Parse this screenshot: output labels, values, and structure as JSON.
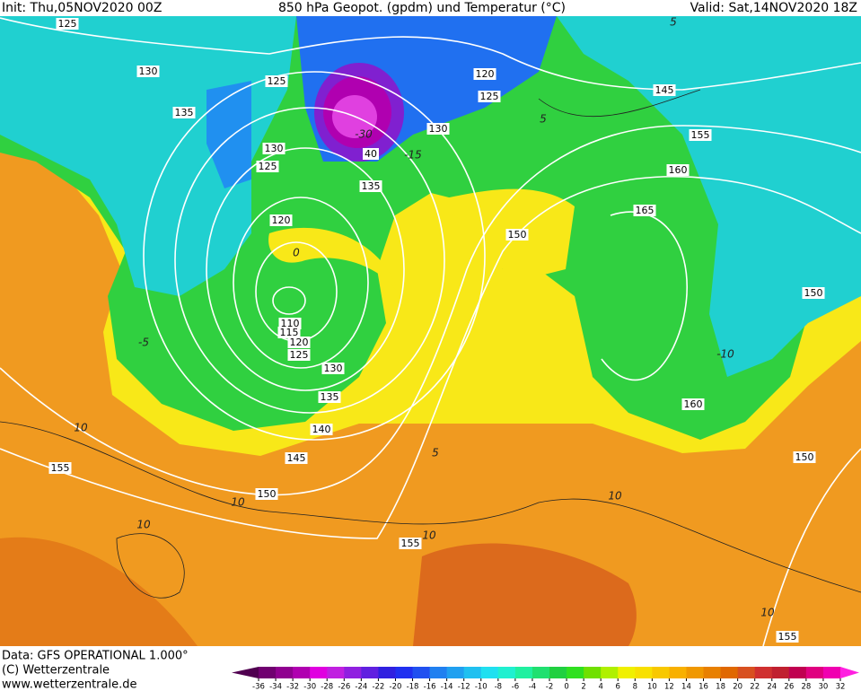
{
  "header": {
    "init": "Init: Thu,05NOV2020 00Z",
    "title": "850 hPa Geopot. (gpdm) und Temperatur (°C)",
    "valid": "Valid: Sat,14NOV2020 18Z"
  },
  "footer": {
    "source": "Data: GFS OPERATIONAL 1.000°",
    "copyright": "(C) Wetterzentrale",
    "url": "www.wetterzentrale.de"
  },
  "colorbar": {
    "ticks": [
      -36,
      -34,
      -32,
      -30,
      -28,
      -26,
      -24,
      -22,
      -20,
      -18,
      -16,
      -14,
      -12,
      -10,
      -8,
      -6,
      -4,
      -2,
      0,
      2,
      4,
      6,
      8,
      10,
      12,
      14,
      16,
      18,
      20,
      22,
      24,
      26,
      28,
      30,
      32
    ],
    "colors": [
      "#500050",
      "#700070",
      "#900090",
      "#b000b0",
      "#e000e0",
      "#c020e0",
      "#9020e0",
      "#6020e0",
      "#3020e0",
      "#2030f0",
      "#2050f0",
      "#2080f0",
      "#20a0f0",
      "#20c0f0",
      "#20e0f0",
      "#20f0d0",
      "#20f0a0",
      "#20e070",
      "#20d040",
      "#30e020",
      "#70e000",
      "#b0f000",
      "#f0f000",
      "#f8e000",
      "#f8c800",
      "#f8b000",
      "#f09800",
      "#e88000",
      "#e06800",
      "#d85020",
      "#d03030",
      "#c02030",
      "#c00050",
      "#e00080",
      "#f000b0",
      "#ff20e0"
    ]
  },
  "contour_labels": [
    "125",
    "130",
    "125",
    "135",
    "120",
    "125",
    "145",
    "130",
    "155",
    "130",
    "125",
    "40",
    "160",
    "135",
    "165",
    "120",
    "150",
    "150",
    "110",
    "115",
    "120",
    "125",
    "130",
    "135",
    "160",
    "140",
    "150",
    "145",
    "155",
    "150",
    "155",
    "155"
  ],
  "temperature_labels": [
    "10",
    "-5",
    "5",
    "10",
    "10",
    "10",
    "10",
    "10",
    "-10",
    "-30",
    "-15",
    "0",
    "5",
    "5"
  ]
}
